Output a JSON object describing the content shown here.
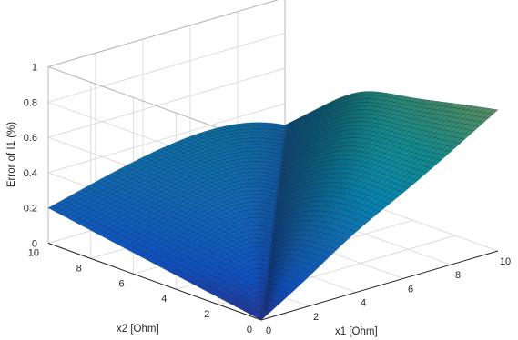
{
  "chart_data": {
    "type": "surface",
    "title": "",
    "xlabel": "x1 [Ohm]",
    "ylabel": "x2 [Ohm]",
    "zlabel": "Error of I1 (%)",
    "xlim": [
      0,
      10
    ],
    "ylim": [
      0,
      10
    ],
    "zlim": [
      0,
      1
    ],
    "x_ticks": [
      "0",
      "2",
      "4",
      "6",
      "8",
      "10"
    ],
    "y_ticks": [
      "0",
      "2",
      "4",
      "6",
      "8",
      "10"
    ],
    "z_ticks": [
      "0",
      "0.2",
      "0.4",
      "0.6",
      "0.8",
      "1"
    ],
    "grid": true,
    "colormap": "parula",
    "mesh_resolution": 50,
    "corner_values": [
      {
        "x1": 0,
        "x2": 0,
        "error": 0.0
      },
      {
        "x1": 10,
        "x2": 0,
        "error": 0.8
      },
      {
        "x1": 0,
        "x2": 10,
        "error": 0.2
      },
      {
        "x1": 10,
        "x2": 10,
        "error": 0.55
      }
    ]
  }
}
